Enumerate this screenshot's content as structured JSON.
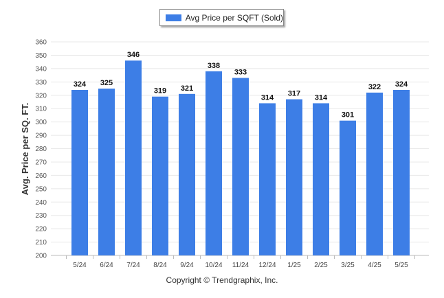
{
  "legend": {
    "label": "Avg Price per SQFT (Sold)"
  },
  "footer": {
    "copyright": "Copyright © Trendgraphix, Inc."
  },
  "colors": {
    "bar": "#3d7ee6",
    "grid": "#e8e8e8",
    "axis": "#bbbbbb"
  },
  "chart_data": {
    "type": "bar",
    "title": "",
    "xlabel": "",
    "ylabel": "Avg. Price per SQ. FT.",
    "categories": [
      "5/24",
      "6/24",
      "7/24",
      "8/24",
      "9/24",
      "10/24",
      "11/24",
      "12/24",
      "1/25",
      "2/25",
      "3/25",
      "4/25",
      "5/25"
    ],
    "series": [
      {
        "name": "Avg Price per SQFT (Sold)",
        "values": [
          324,
          325,
          346,
          319,
          321,
          338,
          333,
          314,
          317,
          314,
          301,
          322,
          324
        ]
      }
    ],
    "ylim": [
      200,
      360
    ],
    "ytick_step": 10,
    "grid": true,
    "legend_position": "top-center",
    "data_labels": true
  }
}
